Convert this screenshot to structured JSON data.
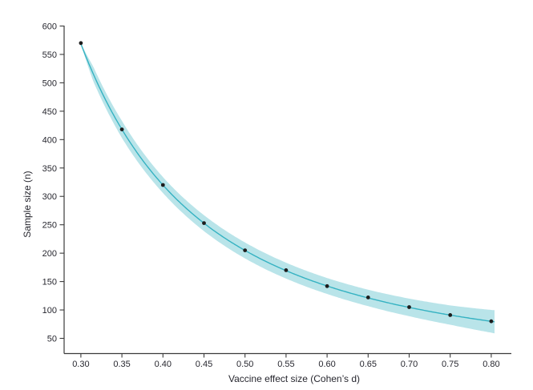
{
  "figure": {
    "background": "#ffffff"
  },
  "chart_data": {
    "type": "scatter",
    "title": "",
    "xlabel": "Vaccine effect size (Cohen’s d)",
    "ylabel": "Sample size (n)",
    "x": [
      0.3,
      0.35,
      0.4,
      0.45,
      0.5,
      0.55,
      0.6,
      0.65,
      0.7,
      0.75,
      0.8
    ],
    "y": [
      570,
      418,
      320,
      253,
      205,
      170,
      142,
      122,
      105,
      91,
      80
    ],
    "fit": {
      "model": "power",
      "formula": "n = 51.2 / d^2",
      "k": 51.2,
      "exponent": -2,
      "x_start": 0.3,
      "x_end": 0.804
    },
    "ci_band": {
      "x": [
        0.3,
        0.315,
        0.35,
        0.4,
        0.45,
        0.5,
        0.55,
        0.6,
        0.65,
        0.7,
        0.75,
        0.8,
        0.804
      ],
      "halfwidth_n": [
        1,
        13,
        15,
        14,
        14,
        14,
        14,
        14,
        14.5,
        15.5,
        17,
        20,
        20.5
      ]
    },
    "x_ticks": [
      0.3,
      0.35,
      0.4,
      0.45,
      0.5,
      0.55,
      0.6,
      0.65,
      0.7,
      0.75,
      0.8
    ],
    "x_tick_labels": [
      "0.30",
      "0.35",
      "0.40",
      "0.45",
      "0.50",
      "0.55",
      "0.60",
      "0.65",
      "0.70",
      "0.75",
      "0.80"
    ],
    "y_ticks": [
      50,
      100,
      150,
      200,
      250,
      300,
      350,
      400,
      450,
      500,
      550,
      600
    ],
    "y_tick_labels": [
      "50",
      "100",
      "150",
      "200",
      "250",
      "300",
      "350",
      "400",
      "450",
      "500",
      "550",
      "600"
    ],
    "xlim": [
      0.28,
      0.825
    ],
    "ylim": [
      28,
      600
    ],
    "grid": false,
    "legend": "none",
    "marker": "filled-circle",
    "colors": {
      "band": "#b9e4e9",
      "line": "#35b2c2",
      "point": "#1d1d1d",
      "axis": "#3b3b3b",
      "text": "#27272f"
    }
  }
}
